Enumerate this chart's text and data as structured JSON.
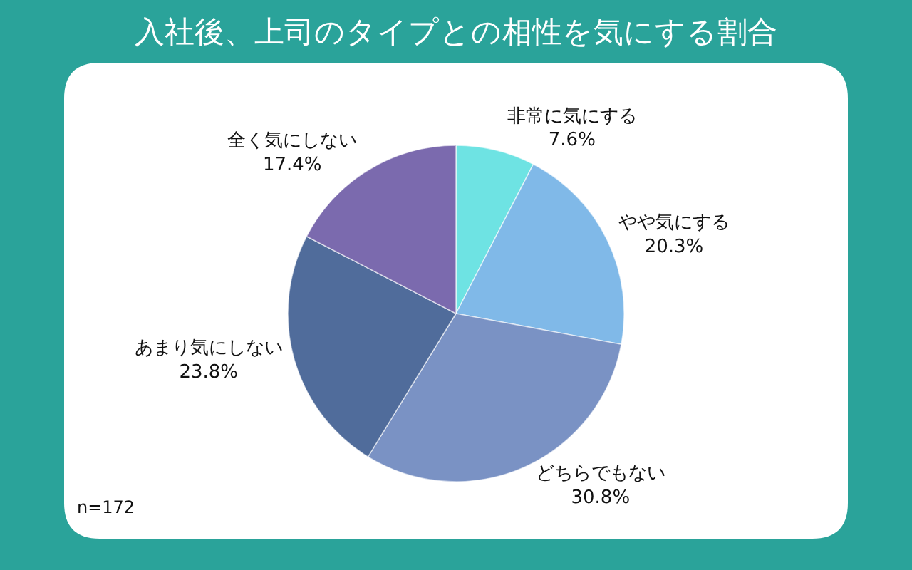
{
  "chart_data": {
    "type": "pie",
    "title": "入社後、上司のタイプとの相性を気にする割合",
    "categories": [
      "非常に気にする",
      "やや気にする",
      "どちらでもない",
      "あまり気にしない",
      "全く気にしない"
    ],
    "values": [
      7.6,
      20.3,
      30.8,
      23.8,
      17.4
    ],
    "value_labels": [
      "7.6%",
      "20.3%",
      "30.8%",
      "23.8%",
      "17.4%"
    ],
    "colors": [
      "#6ee3e3",
      "#80b9e8",
      "#7a92c4",
      "#506c9b",
      "#7b6aae"
    ],
    "annotations": [
      "n=172"
    ]
  }
}
